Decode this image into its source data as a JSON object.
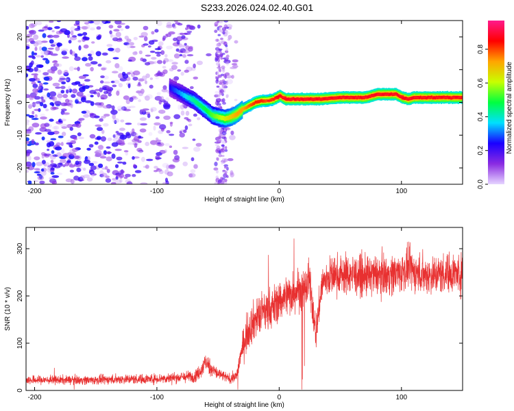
{
  "figure_title": "S233.2026.024.02.40.G01",
  "chart_data": [
    {
      "type": "heatmap",
      "title": "",
      "xlabel": "Height of straight line (km)",
      "ylabel": "Frequency (Hz)",
      "xlim": [
        -207,
        150
      ],
      "ylim": [
        -25,
        25
      ],
      "xticks": [
        -200,
        -100,
        0,
        100
      ],
      "yticks": [
        -20,
        -10,
        0,
        10,
        20
      ],
      "colorbar": {
        "label": "Normalized spectral amplitude",
        "range": [
          0,
          0.97
        ],
        "ticks": [
          0.0,
          0.2,
          0.4,
          0.6,
          0.8
        ],
        "colormap": [
          "#e6d5ff",
          "#8a2be2",
          "#1a00ff",
          "#00e0ff",
          "#00ff40",
          "#c8ff00",
          "#ffa500",
          "#ff0000",
          "#ff1a8c"
        ]
      },
      "ridge": {
        "x_km": [
          -90,
          -80,
          -70,
          -60,
          -55,
          -50,
          -45,
          -40,
          -35,
          -30,
          -25,
          -20,
          -15,
          -10,
          -5,
          0,
          5,
          10,
          20,
          30,
          40,
          50,
          60,
          70,
          75,
          80,
          85,
          90,
          95,
          100,
          105,
          110,
          120,
          130,
          140,
          150
        ],
        "f_hz": [
          4.5,
          2.5,
          0.5,
          -2.5,
          -4,
          -4.5,
          -5,
          -4.5,
          -3.5,
          -2,
          -1,
          0,
          0.5,
          0.5,
          1,
          2,
          1,
          1,
          1,
          1,
          1.2,
          1.5,
          1.5,
          1.5,
          2,
          2.5,
          2.5,
          2.5,
          2.5,
          1.5,
          1,
          1.5,
          1.5,
          1.5,
          1.5,
          1.5
        ],
        "amp": [
          0.25,
          0.35,
          0.45,
          0.5,
          0.55,
          0.6,
          0.65,
          0.7,
          0.75,
          0.75,
          0.8,
          0.85,
          0.85,
          0.8,
          0.85,
          0.9,
          0.9,
          0.9,
          0.9,
          0.9,
          0.9,
          0.9,
          0.9,
          0.9,
          0.9,
          0.9,
          0.9,
          0.9,
          0.9,
          0.9,
          0.9,
          0.9,
          0.9,
          0.9,
          0.9,
          0.9
        ]
      },
      "noise": {
        "x_range": [
          -207,
          -35
        ],
        "f_range": [
          -25,
          25
        ],
        "amp_max": 0.3
      }
    },
    {
      "type": "line",
      "title": "",
      "xlabel": "Height of straight line (km)",
      "ylabel": "SNR (10 * v/v)",
      "xlim": [
        -207,
        150
      ],
      "ylim": [
        0,
        345
      ],
      "xticks": [
        -200,
        -100,
        0,
        100
      ],
      "yticks": [
        0,
        100,
        200,
        300
      ],
      "color": "#e83030",
      "series": [
        {
          "name": "SNR",
          "x": [
            -207,
            -190,
            -170,
            -150,
            -130,
            -110,
            -90,
            -80,
            -70,
            -65,
            -60,
            -55,
            -50,
            -45,
            -40,
            -35,
            -32,
            -30,
            -28,
            -25,
            -20,
            -15,
            -10,
            -5,
            0,
            5,
            10,
            15,
            20,
            25,
            30,
            35,
            40,
            50,
            60,
            70,
            80,
            90,
            100,
            107,
            110,
            120,
            130,
            140,
            150
          ],
          "values": [
            22,
            22,
            22,
            22,
            24,
            24,
            26,
            28,
            30,
            38,
            60,
            45,
            35,
            30,
            24,
            30,
            70,
            90,
            110,
            130,
            150,
            160,
            170,
            175,
            190,
            200,
            205,
            215,
            210,
            230,
            120,
            225,
            240,
            245,
            245,
            240,
            245,
            245,
            250,
            260,
            250,
            245,
            245,
            250,
            245
          ],
          "noise_amp": [
            10,
            10,
            10,
            10,
            11,
            11,
            12,
            12,
            14,
            16,
            22,
            18,
            14,
            12,
            10,
            14,
            25,
            35,
            40,
            45,
            45,
            48,
            48,
            48,
            48,
            48,
            48,
            48,
            48,
            48,
            40,
            45,
            45,
            45,
            45,
            45,
            45,
            45,
            45,
            45,
            45,
            45,
            45,
            45,
            45
          ]
        }
      ]
    }
  ]
}
